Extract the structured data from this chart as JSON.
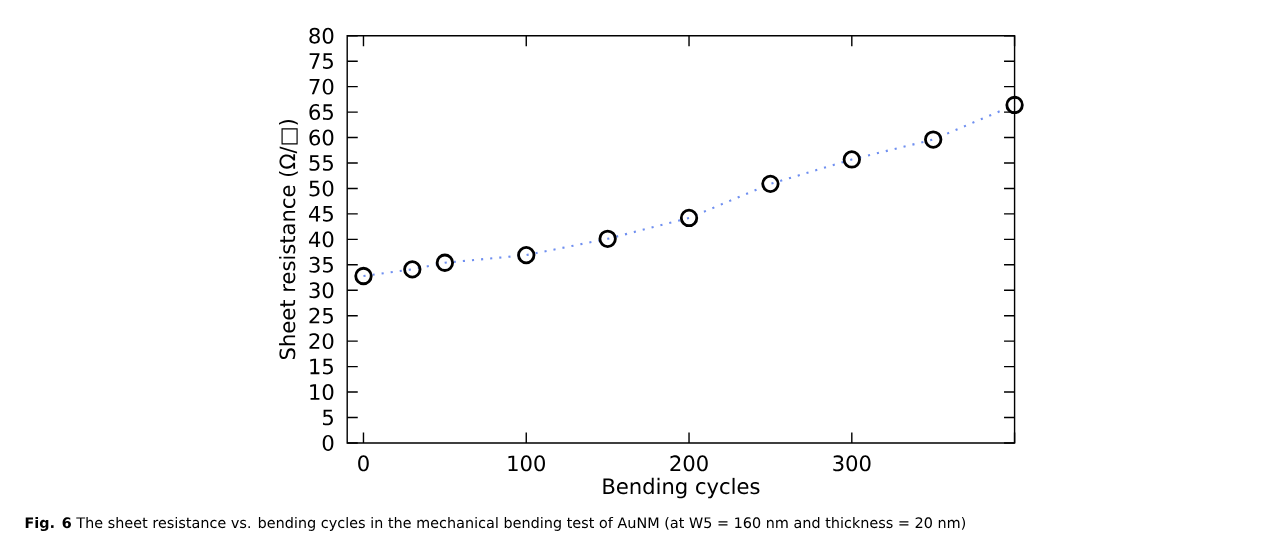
{
  "chart_data": {
    "type": "line",
    "xlabel": "Bending cycles",
    "ylabel": "Sheet resistance (Ω/□)",
    "x": [
      0,
      30,
      50,
      100,
      150,
      200,
      250,
      300,
      350,
      400
    ],
    "series": [
      {
        "color": "#6f8ff0",
        "values": [
          32.8,
          34.1,
          35.4,
          36.9,
          40.1,
          44.2,
          50.9,
          55.7,
          59.6,
          66.4
        ]
      }
    ],
    "xlim": [
      -10,
      400
    ],
    "xticks": [
      0,
      100,
      200,
      300,
      {
        "value": 400,
        "label": null
      }
    ],
    "ylim": [
      0,
      80
    ],
    "yticks": [
      0,
      5,
      10,
      15,
      20,
      25,
      30,
      35,
      40,
      45,
      50,
      55,
      60,
      65,
      70,
      75,
      80
    ],
    "marker": "circle",
    "line_style": "dotted",
    "annotations": [
      "**Fig. 6** The sheet resistance vs. bending cycles in the mechanical bending test of AuNM (at W5 = 160 nm and thickness = 20 nm)"
    ]
  }
}
